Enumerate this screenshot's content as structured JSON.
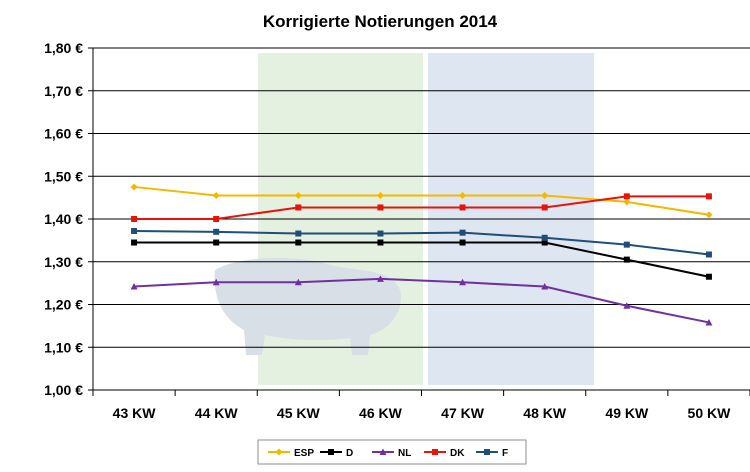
{
  "chart_data": {
    "type": "line",
    "title": "Korrigierte Notierungen 2014",
    "categories": [
      "43 KW",
      "44 KW",
      "45 KW",
      "46 KW",
      "47 KW",
      "48 KW",
      "49 KW",
      "50 KW"
    ],
    "y_ticks": [
      "1,00 €",
      "1,10 €",
      "1,20 €",
      "1,30 €",
      "1,40 €",
      "1,50 €",
      "1,60 €",
      "1,70 €",
      "1,80 €"
    ],
    "ylim": [
      1.0,
      1.8
    ],
    "grid": true,
    "legend_position": "bottom",
    "series": [
      {
        "name": "ESP",
        "color": "#F5B800",
        "marker": "diamond",
        "values": [
          1.475,
          1.455,
          1.455,
          1.455,
          1.455,
          1.455,
          1.44,
          1.41
        ]
      },
      {
        "name": "D",
        "color": "#000000",
        "marker": "square",
        "values": [
          1.345,
          1.345,
          1.345,
          1.345,
          1.345,
          1.345,
          1.305,
          1.265
        ]
      },
      {
        "name": "NL",
        "color": "#7030A0",
        "marker": "triangle",
        "values": [
          1.242,
          1.252,
          1.252,
          1.26,
          1.252,
          1.242,
          1.197,
          1.158
        ]
      },
      {
        "name": "DK",
        "color": "#E8140C",
        "marker": "square",
        "values": [
          1.4,
          1.4,
          1.427,
          1.427,
          1.427,
          1.427,
          1.453,
          1.453
        ]
      },
      {
        "name": "F",
        "color": "#1F4E79",
        "marker": "square",
        "values": [
          1.372,
          1.37,
          1.366,
          1.366,
          1.368,
          1.356,
          1.34,
          1.317
        ]
      }
    ]
  }
}
